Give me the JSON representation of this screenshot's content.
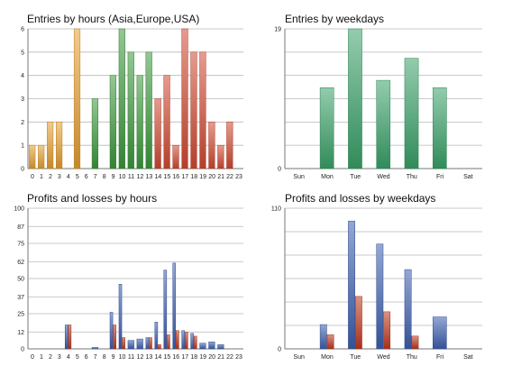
{
  "chart_data": [
    {
      "id": "entries-hours",
      "type": "bar",
      "title": "Entries by hours (Asia,Europe,USA)",
      "categories": [
        "0",
        "1",
        "2",
        "3",
        "4",
        "5",
        "6",
        "7",
        "8",
        "9",
        "10",
        "11",
        "12",
        "13",
        "14",
        "15",
        "16",
        "17",
        "18",
        "19",
        "20",
        "21",
        "22",
        "23"
      ],
      "y_ticks": [
        "0",
        "1",
        "2",
        "3",
        "4",
        "5",
        "6"
      ],
      "ylim": [
        0,
        6
      ],
      "grid": true,
      "series": [
        {
          "values": [
            1,
            1,
            2,
            2,
            0,
            6,
            0,
            0,
            0,
            0,
            0,
            0,
            0,
            0,
            0,
            0,
            0,
            0,
            0,
            0,
            0,
            0,
            0,
            0
          ],
          "color": "#e8a030"
        },
        {
          "values": [
            0,
            0,
            0,
            0,
            0,
            0,
            0,
            3,
            0,
            4,
            6,
            5,
            4,
            5,
            0,
            0,
            0,
            0,
            0,
            0,
            0,
            0,
            0,
            0
          ],
          "color": "#3c9a3c"
        },
        {
          "values": [
            0,
            0,
            0,
            0,
            0,
            0,
            0,
            0,
            0,
            0,
            0,
            0,
            0,
            0,
            3,
            4,
            1,
            6,
            5,
            5,
            2,
            1,
            2,
            0
          ],
          "color": "#d24a32"
        }
      ]
    },
    {
      "id": "entries-weekdays",
      "type": "bar",
      "title": "Entries by weekdays",
      "categories": [
        "Sun",
        "Mon",
        "Tue",
        "Wed",
        "Thu",
        "Fri",
        "Sat"
      ],
      "y_ticks": [
        "0",
        "19"
      ],
      "ylim": [
        0,
        19
      ],
      "grid": true,
      "series": [
        {
          "values": [
            0,
            11,
            19,
            12,
            15,
            11,
            0
          ],
          "color": "#3aa36a"
        }
      ]
    },
    {
      "id": "profits-hours",
      "type": "bar",
      "title": "Profits and losses by hours",
      "categories": [
        "0",
        "1",
        "2",
        "3",
        "4",
        "5",
        "6",
        "7",
        "8",
        "9",
        "10",
        "11",
        "12",
        "13",
        "14",
        "15",
        "16",
        "17",
        "18",
        "19",
        "20",
        "21",
        "22",
        "23"
      ],
      "y_ticks": [
        "0",
        "12",
        "25",
        "37",
        "50",
        "62",
        "75",
        "87",
        "100"
      ],
      "ylim": [
        0,
        100
      ],
      "grid": true,
      "series": [
        {
          "values": [
            0,
            0,
            0,
            0,
            17,
            0,
            0,
            1,
            0,
            26,
            46,
            6,
            7,
            8,
            19,
            56,
            61,
            13,
            11,
            4,
            5,
            3,
            0,
            0
          ],
          "color": "#3d5fb0"
        },
        {
          "values": [
            0,
            0,
            0,
            0,
            17,
            0,
            0,
            0,
            0,
            17,
            8,
            0,
            0,
            8,
            3,
            10,
            13,
            12,
            9,
            0,
            0,
            0,
            0,
            0
          ],
          "color": "#c0391e"
        }
      ]
    },
    {
      "id": "profits-weekdays",
      "type": "bar",
      "title": "Profits and losses by weekdays",
      "categories": [
        "Sun",
        "Mon",
        "Tue",
        "Wed",
        "Thu",
        "Fri",
        "Sat"
      ],
      "y_ticks": [
        "0",
        "110"
      ],
      "ylim": [
        0,
        110
      ],
      "grid": true,
      "series": [
        {
          "values": [
            0,
            19,
            100,
            82,
            62,
            25,
            0
          ],
          "color": "#3d5fb0"
        },
        {
          "values": [
            0,
            11,
            41,
            29,
            10,
            0,
            0
          ],
          "color": "#c0391e"
        }
      ]
    }
  ]
}
